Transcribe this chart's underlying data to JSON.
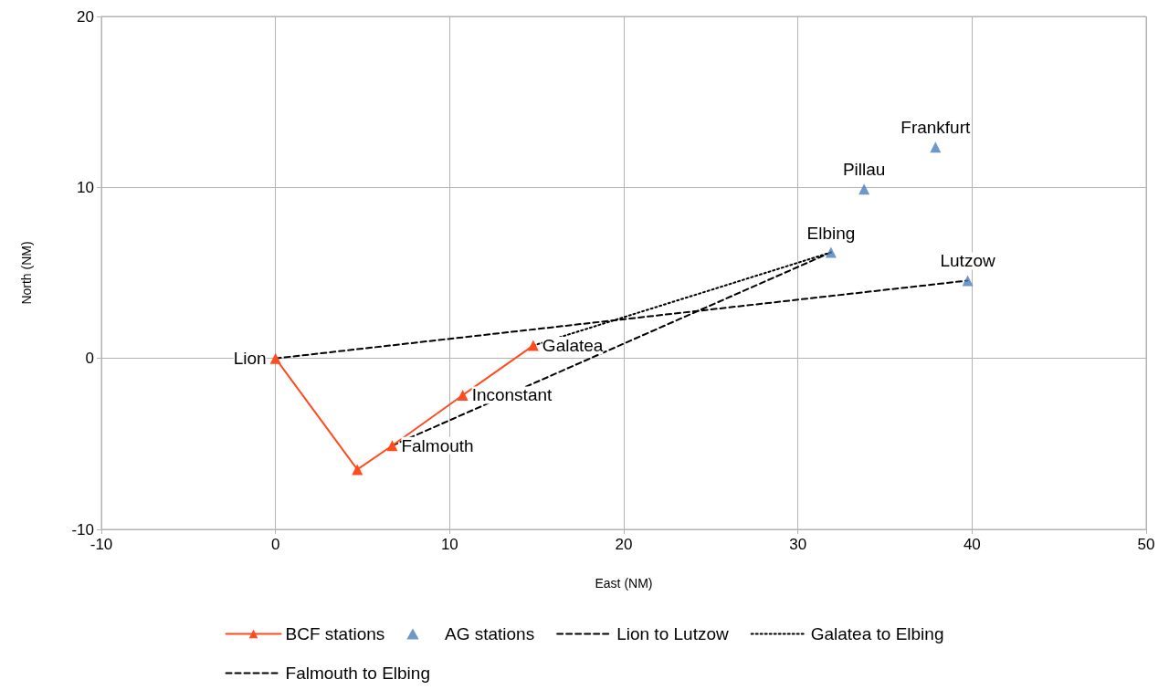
{
  "chart_data": {
    "type": "scatter",
    "xlabel": "East (NM)",
    "ylabel": "North (NM)",
    "xlim": [
      -10,
      50
    ],
    "xticks": [
      -10,
      0,
      10,
      20,
      30,
      40,
      50
    ],
    "ylim": [
      -10,
      20
    ],
    "yticks": [
      -10,
      0,
      10,
      20
    ],
    "grid": true,
    "legend": "bottom",
    "series": [
      {
        "name": "BCF stations",
        "type": "line",
        "color": "#ff4b1e",
        "marker": "triangle",
        "line_style": "solid",
        "x": [
          0,
          4.7,
          6.7,
          10.75,
          14.8
        ],
        "values": [
          0,
          -6.5,
          -5.1,
          -2.15,
          0.75
        ]
      },
      {
        "name": "AG stations",
        "type": "scatter",
        "color": "#4a7ebb",
        "marker": "triangle",
        "x": [
          31.9,
          33.8,
          37.9,
          39.75
        ],
        "values": [
          6.2,
          9.9,
          12.35,
          4.55
        ]
      },
      {
        "name": "Lion to Lutzow",
        "type": "line",
        "color": "#000000",
        "marker": "none",
        "line_style": "dashed",
        "x": [
          0,
          39.75
        ],
        "values": [
          0,
          4.55
        ]
      },
      {
        "name": "Galatea to Elbing",
        "type": "line",
        "color": "#000000",
        "marker": "none",
        "line_style": "dotted",
        "x": [
          14.8,
          31.9
        ],
        "values": [
          0.75,
          6.2
        ]
      },
      {
        "name": "Falmouth to Elbing",
        "type": "line",
        "color": "#000000",
        "marker": "none",
        "line_style": "dashed",
        "x": [
          6.7,
          31.9
        ],
        "values": [
          -5.1,
          6.2
        ]
      }
    ],
    "annotations": [
      {
        "text": "Lion",
        "x": 0,
        "y": 0
      },
      {
        "text": "Falmouth",
        "x": 6.7,
        "y": -5.1
      },
      {
        "text": "Inconstant",
        "x": 10.75,
        "y": -2.15
      },
      {
        "text": "Galatea",
        "x": 14.8,
        "y": 0.75
      },
      {
        "text": "Elbing",
        "x": 31.9,
        "y": 6.2
      },
      {
        "text": "Pillau",
        "x": 33.8,
        "y": 9.9
      },
      {
        "text": "Frankfurt",
        "x": 37.9,
        "y": 12.35
      },
      {
        "text": "Lutzow",
        "x": 39.75,
        "y": 4.55
      }
    ]
  }
}
